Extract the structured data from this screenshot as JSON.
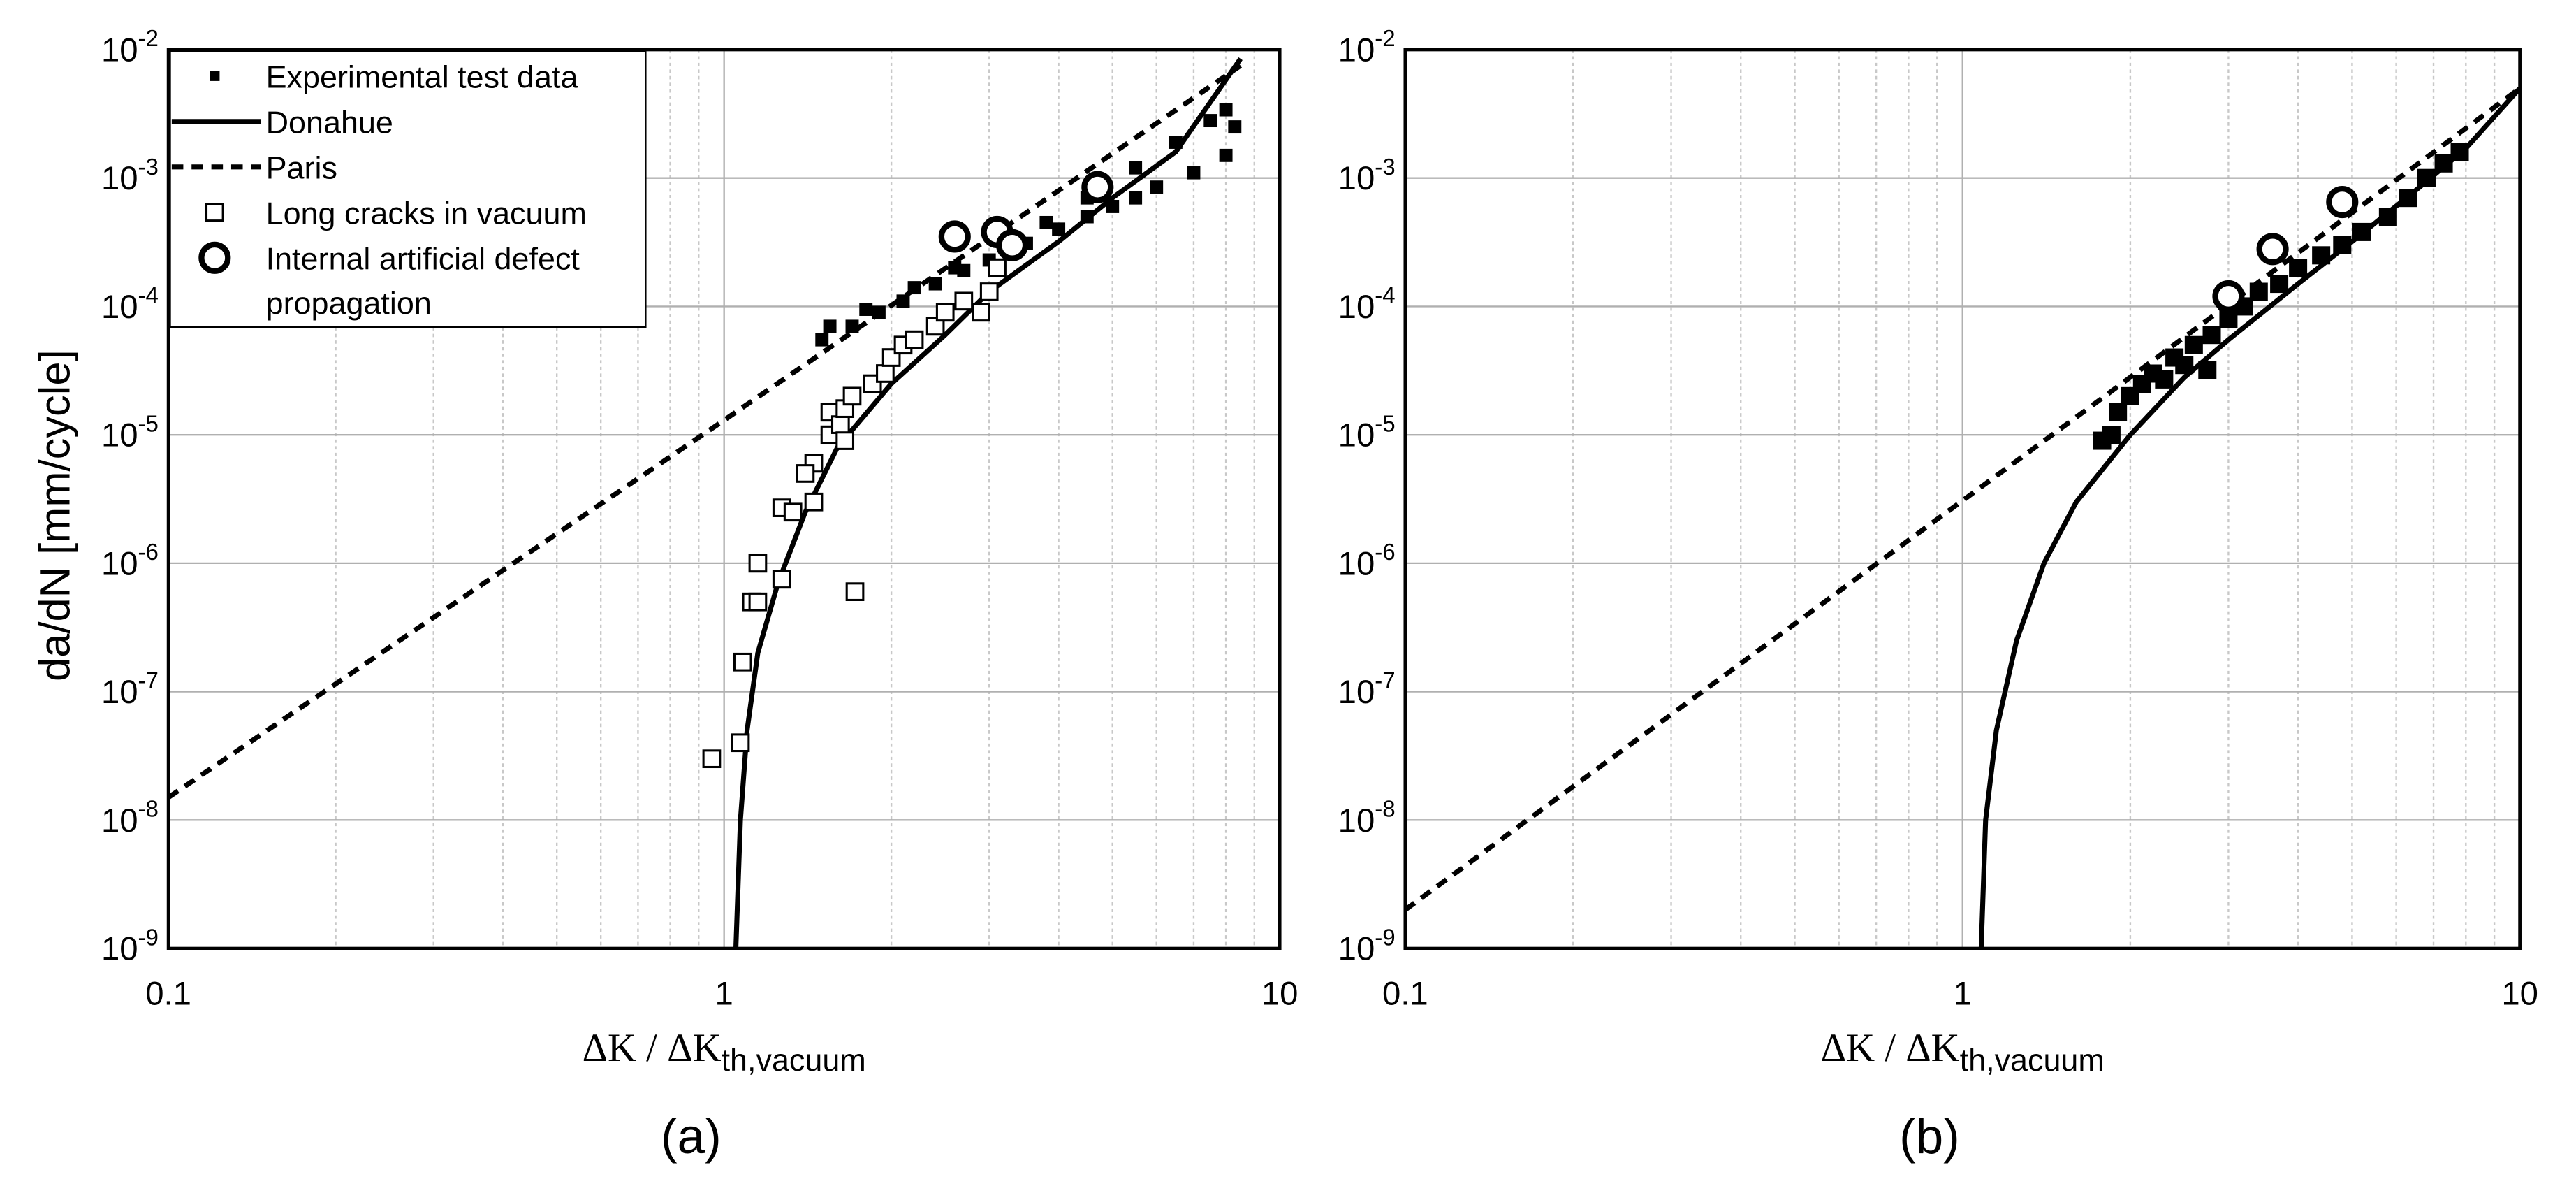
{
  "chart_data": [
    {
      "type": "scatter",
      "caption": "(a)",
      "xlabel": "ΔK / ΔK",
      "xlabel_subscript": "th,vacuum",
      "ylabel": "da/dN [mm/cycle]",
      "xscale": "log",
      "yscale": "log",
      "grid": true,
      "legend": "upper left",
      "xlim": [
        0.1,
        10
      ],
      "ylim": [
        1e-09,
        0.01
      ],
      "xticks": [
        0.1,
        1,
        10
      ],
      "xminorticks": [
        0.2,
        0.3,
        0.4,
        0.5,
        0.6,
        0.7,
        0.8,
        0.9,
        2,
        3,
        4,
        5,
        6,
        7,
        8,
        9
      ],
      "yticks": [
        {
          "value": 1e-09,
          "label": "10-9"
        },
        {
          "value": 1e-08,
          "label": "10-8"
        },
        {
          "value": 1e-07,
          "label": "10-7"
        },
        {
          "value": 1e-06,
          "label": "10-6"
        },
        {
          "value": 1e-05,
          "label": "10-5"
        },
        {
          "value": 0.0001,
          "label": "10-4"
        },
        {
          "value": 0.001,
          "label": "10-3"
        },
        {
          "value": 0.01,
          "label": "10-2"
        }
      ],
      "series": [
        {
          "name": "Experimental test data",
          "color": "#000000",
          "marker": "square-filled",
          "x": [
            1.5,
            1.7,
            1.9,
            2.1,
            2.4,
            2.7,
            3.0,
            3.5,
            4,
            4.5,
            5,
            5.5,
            6,
            7,
            8,
            1.55,
            1.8,
            2.2,
            2.6,
            3.2,
            3.8,
            4.5,
            5.5,
            6.5,
            7.5,
            8,
            8.3
          ],
          "values": [
            5.5e-05,
            7e-05,
            9e-05,
            0.00011,
            0.00015,
            0.00019,
            0.00023,
            0.00031,
            0.0004,
            0.0005,
            0.0006,
            0.0007,
            0.00085,
            0.0011,
            0.0015,
            7e-05,
            9.5e-05,
            0.00014,
            0.0002,
            0.0003,
            0.00045,
            0.0007,
            0.0012,
            0.0019,
            0.0028,
            0.0034,
            0.0025
          ]
        },
        {
          "name": "Donahue",
          "color": "#000000",
          "line": "solid",
          "x": [
            1.05,
            1.07,
            1.1,
            1.15,
            1.25,
            1.4,
            1.6,
            2,
            2.5,
            3,
            4,
            5,
            6.5,
            8.5
          ],
          "values": [
            1e-09,
            1e-08,
            5e-08,
            2e-07,
            7e-07,
            2.5e-06,
            8e-06,
            2.5e-05,
            6e-05,
            0.00013,
            0.00032,
            0.0007,
            0.0016,
            0.0085
          ]
        },
        {
          "name": "Paris",
          "color": "#000000",
          "line": "dashed",
          "x": [
            0.1,
            1,
            8.5
          ],
          "values": [
            1.5e-08,
            1.3e-05,
            0.0075
          ]
        },
        {
          "name": "Long cracks in vacuum",
          "color": "#000000",
          "marker": "square-open",
          "x": [
            0.95,
            1.07,
            1.08,
            1.12,
            1.15,
            1.15,
            1.27,
            1.27,
            1.33,
            1.45,
            1.45,
            1.4,
            1.55,
            1.55,
            1.62,
            1.65,
            1.65,
            1.7,
            1.72,
            1.85,
            1.95,
            2,
            2.1,
            2.2,
            2.4,
            2.5,
            2.7,
            2.9,
            3.0,
            3.1
          ],
          "values": [
            3e-08,
            4e-08,
            1.7e-07,
            5e-07,
            5e-07,
            1e-06,
            7.5e-07,
            2.7e-06,
            2.5e-06,
            3e-06,
            6e-06,
            5e-06,
            1e-05,
            1.5e-05,
            1.2e-05,
            1.6e-05,
            9e-06,
            2e-05,
            6e-07,
            2.5e-05,
            3e-05,
            4e-05,
            5e-05,
            5.5e-05,
            7e-05,
            9e-05,
            0.00011,
            9e-05,
            0.00013,
            0.0002
          ]
        },
        {
          "name": "Internal artificial defect propagation",
          "color": "#000000",
          "marker": "circle-open",
          "x": [
            2.6,
            3.1,
            3.3,
            4.7
          ],
          "values": [
            0.00035,
            0.00038,
            0.0003,
            0.00085
          ]
        }
      ]
    },
    {
      "type": "scatter",
      "caption": "(b)",
      "xlabel": "ΔK / ΔK",
      "xlabel_subscript": "th,vacuum",
      "xscale": "log",
      "yscale": "log",
      "grid": true,
      "xlim": [
        0.1,
        10
      ],
      "ylim": [
        1e-09,
        0.01
      ],
      "xticks": [
        0.1,
        1,
        10
      ],
      "xminorticks": [
        0.2,
        0.3,
        0.4,
        0.5,
        0.6,
        0.7,
        0.8,
        0.9,
        2,
        3,
        4,
        5,
        6,
        7,
        8,
        9
      ],
      "yticks": [
        {
          "value": 1e-09,
          "label": "10-9"
        },
        {
          "value": 1e-08,
          "label": "10-8"
        },
        {
          "value": 1e-07,
          "label": "10-7"
        },
        {
          "value": 1e-06,
          "label": "10-6"
        },
        {
          "value": 1e-05,
          "label": "10-5"
        },
        {
          "value": 0.0001,
          "label": "10-4"
        },
        {
          "value": 0.001,
          "label": "10-3"
        },
        {
          "value": 0.01,
          "label": "10-2"
        }
      ],
      "series": [
        {
          "color": "#000000",
          "line": "dashed",
          "x": [
            0.1,
            1.8,
            10
          ],
          "values": [
            2e-09,
            2e-05,
            0.005
          ]
        },
        {
          "color": "#000000",
          "line": "solid",
          "x": [
            1.08,
            1.1,
            1.15,
            1.25,
            1.4,
            1.6,
            2,
            2.5,
            3,
            4,
            5,
            6.5,
            8,
            10
          ],
          "values": [
            1e-09,
            1e-08,
            5e-08,
            2.5e-07,
            1e-06,
            3e-06,
            1e-05,
            2.8e-05,
            5.5e-05,
            0.00015,
            0.00032,
            0.0008,
            0.0017,
            0.005
          ]
        },
        {
          "color": "#000000",
          "marker": "square-filled-large",
          "x": [
            1.78,
            1.85,
            1.9,
            2,
            2.1,
            2.2,
            2.3,
            2.4,
            2.5,
            2.6,
            2.75,
            2.8,
            3,
            3.2,
            3.4,
            3.7,
            4,
            4.4,
            4.8,
            5.2,
            5.8,
            6.3,
            6.8,
            7.3,
            7.8
          ],
          "values": [
            9e-06,
            1e-05,
            1.5e-05,
            2e-05,
            2.5e-05,
            3e-05,
            2.7e-05,
            4e-05,
            3.5e-05,
            5e-05,
            3.2e-05,
            6e-05,
            8e-05,
            0.0001,
            0.00013,
            0.00015,
            0.0002,
            0.00025,
            0.0003,
            0.00038,
            0.0005,
            0.0007,
            0.001,
            0.0013,
            0.0016
          ]
        },
        {
          "color": "#000000",
          "marker": "circle-open",
          "x": [
            3.0,
            3.6,
            4.8
          ],
          "values": [
            0.00012,
            0.00028,
            0.00065
          ]
        }
      ]
    }
  ]
}
